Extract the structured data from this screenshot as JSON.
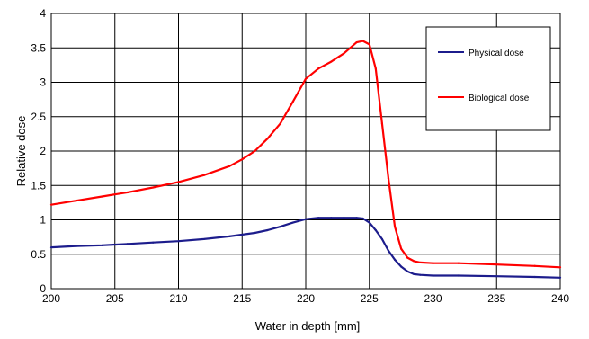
{
  "chart_data": {
    "type": "line",
    "title": "",
    "xlabel": "Water in depth [mm]",
    "ylabel": "Relative dose",
    "xlim": [
      200,
      240
    ],
    "ylim": [
      0,
      4
    ],
    "x_ticks": [
      200,
      205,
      210,
      215,
      220,
      225,
      230,
      235,
      240
    ],
    "y_ticks": [
      0,
      0.5,
      1,
      1.5,
      2,
      2.5,
      3,
      3.5,
      4
    ],
    "y_tick_labels": [
      "0",
      "0.5",
      "1",
      "1.5",
      "2",
      "2.5",
      "3",
      "3.5",
      "4"
    ],
    "grid": true,
    "legend_position": "top-right",
    "series": [
      {
        "name": "Physical dose",
        "color": "#1c1c8c",
        "points": [
          [
            200,
            0.6
          ],
          [
            202,
            0.62
          ],
          [
            204,
            0.63
          ],
          [
            206,
            0.65
          ],
          [
            208,
            0.67
          ],
          [
            210,
            0.69
          ],
          [
            212,
            0.72
          ],
          [
            214,
            0.76
          ],
          [
            216,
            0.81
          ],
          [
            217,
            0.85
          ],
          [
            218,
            0.9
          ],
          [
            219,
            0.96
          ],
          [
            220,
            1.01
          ],
          [
            221,
            1.03
          ],
          [
            222,
            1.03
          ],
          [
            223,
            1.03
          ],
          [
            224,
            1.03
          ],
          [
            224.5,
            1.02
          ],
          [
            225,
            0.96
          ],
          [
            225.5,
            0.85
          ],
          [
            226,
            0.72
          ],
          [
            226.5,
            0.55
          ],
          [
            227,
            0.42
          ],
          [
            227.5,
            0.32
          ],
          [
            228,
            0.25
          ],
          [
            228.5,
            0.21
          ],
          [
            229,
            0.2
          ],
          [
            230,
            0.19
          ],
          [
            232,
            0.19
          ],
          [
            235,
            0.18
          ],
          [
            238,
            0.17
          ],
          [
            240,
            0.16
          ]
        ]
      },
      {
        "name": "Biological dose",
        "color": "#ff0000",
        "points": [
          [
            200,
            1.22
          ],
          [
            202,
            1.28
          ],
          [
            204,
            1.34
          ],
          [
            206,
            1.4
          ],
          [
            208,
            1.47
          ],
          [
            210,
            1.55
          ],
          [
            212,
            1.65
          ],
          [
            214,
            1.78
          ],
          [
            215,
            1.88
          ],
          [
            216,
            2.0
          ],
          [
            217,
            2.18
          ],
          [
            218,
            2.4
          ],
          [
            219,
            2.72
          ],
          [
            220,
            3.05
          ],
          [
            221,
            3.2
          ],
          [
            222,
            3.3
          ],
          [
            223,
            3.42
          ],
          [
            224,
            3.58
          ],
          [
            224.5,
            3.6
          ],
          [
            225,
            3.55
          ],
          [
            225.5,
            3.2
          ],
          [
            226,
            2.4
          ],
          [
            226.5,
            1.6
          ],
          [
            227,
            0.9
          ],
          [
            227.5,
            0.58
          ],
          [
            228,
            0.45
          ],
          [
            228.5,
            0.4
          ],
          [
            229,
            0.38
          ],
          [
            230,
            0.37
          ],
          [
            232,
            0.37
          ],
          [
            235,
            0.35
          ],
          [
            238,
            0.33
          ],
          [
            240,
            0.31
          ]
        ]
      }
    ]
  }
}
